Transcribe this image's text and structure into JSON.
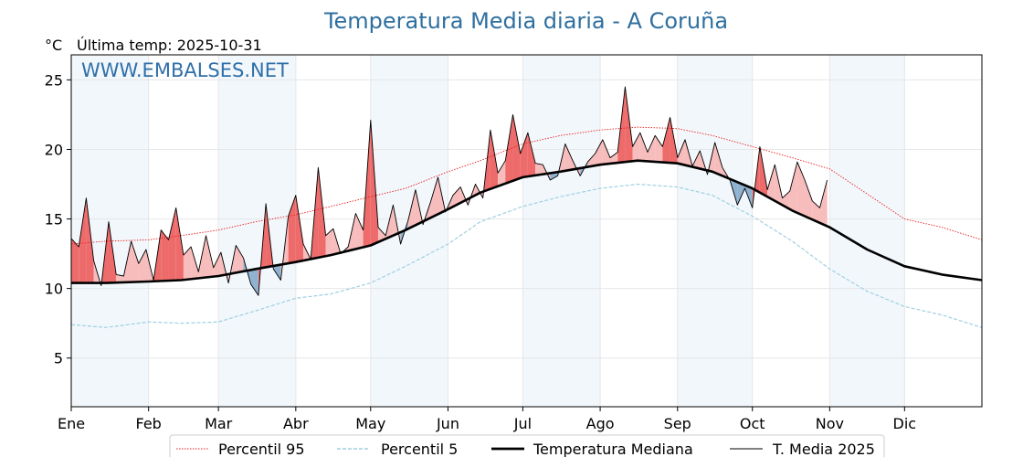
{
  "chart_data": {
    "type": "line",
    "title": "Temperatura Media diaria - A Coruña",
    "unit_label": "°C",
    "last_temp_label": "Última temp: 2025-10-31",
    "watermark": "WWW.EMBALSES.NET",
    "ylim": [
      1.5,
      26.8
    ],
    "xlim": [
      1,
      366
    ],
    "yticks": [
      5,
      10,
      15,
      20,
      25
    ],
    "months": [
      {
        "label": "Ene",
        "day": 1
      },
      {
        "label": "Feb",
        "day": 32
      },
      {
        "label": "Mar",
        "day": 60
      },
      {
        "label": "Abr",
        "day": 91
      },
      {
        "label": "May",
        "day": 121
      },
      {
        "label": "Jun",
        "day": 152
      },
      {
        "label": "Jul",
        "day": 182
      },
      {
        "label": "Ago",
        "day": 213
      },
      {
        "label": "Sep",
        "day": 244
      },
      {
        "label": "Oct",
        "day": 274
      },
      {
        "label": "Nov",
        "day": 305
      },
      {
        "label": "Dic",
        "day": 335
      }
    ],
    "grid": true,
    "legend_position": "bottom",
    "series": [
      {
        "name": "Percentil 95",
        "color": "#e8201f",
        "style": "dotted",
        "days": [
          1,
          15,
          32,
          45,
          60,
          75,
          91,
          105,
          121,
          135,
          152,
          165,
          182,
          197,
          213,
          228,
          244,
          258,
          274,
          290,
          305,
          320,
          335,
          350,
          366
        ],
        "values": [
          13.2,
          13.4,
          13.5,
          13.8,
          14.2,
          14.8,
          15.3,
          15.9,
          16.6,
          17.2,
          18.4,
          19.2,
          20.4,
          21.0,
          21.4,
          21.6,
          21.5,
          21.0,
          20.2,
          19.4,
          18.6,
          16.8,
          15.0,
          14.4,
          13.5
        ]
      },
      {
        "name": "Percentil 5",
        "color": "#9fd0e0",
        "style": "dashed",
        "days": [
          1,
          15,
          32,
          45,
          60,
          75,
          91,
          105,
          121,
          135,
          152,
          165,
          182,
          197,
          213,
          228,
          244,
          258,
          274,
          290,
          305,
          320,
          335,
          350,
          366
        ],
        "values": [
          7.4,
          7.2,
          7.6,
          7.5,
          7.6,
          8.4,
          9.3,
          9.6,
          10.4,
          11.6,
          13.2,
          14.8,
          15.9,
          16.6,
          17.2,
          17.5,
          17.3,
          16.7,
          15.2,
          13.4,
          11.4,
          9.8,
          8.7,
          8.1,
          7.2
        ]
      },
      {
        "name": "Temperatura Mediana",
        "color": "#000000",
        "style": "solid-thick",
        "days": [
          1,
          15,
          32,
          45,
          60,
          75,
          91,
          105,
          121,
          135,
          152,
          165,
          182,
          197,
          213,
          228,
          244,
          258,
          274,
          290,
          305,
          320,
          335,
          350,
          366
        ],
        "values": [
          10.4,
          10.4,
          10.5,
          10.6,
          10.9,
          11.4,
          11.9,
          12.4,
          13.1,
          14.2,
          15.7,
          16.9,
          18.0,
          18.4,
          18.9,
          19.2,
          19.0,
          18.4,
          17.2,
          15.6,
          14.4,
          12.8,
          11.6,
          11.0,
          10.6
        ]
      },
      {
        "name": "T. Media 2025",
        "color": "#000000",
        "style": "solid-thin",
        "days": [
          1,
          4,
          7,
          10,
          13,
          16,
          19,
          22,
          25,
          28,
          31,
          34,
          37,
          40,
          43,
          46,
          49,
          52,
          55,
          58,
          61,
          64,
          67,
          70,
          73,
          76,
          79,
          82,
          85,
          88,
          91,
          94,
          97,
          100,
          103,
          106,
          109,
          112,
          115,
          118,
          121,
          124,
          127,
          130,
          133,
          136,
          139,
          142,
          145,
          148,
          151,
          154,
          157,
          160,
          163,
          166,
          169,
          172,
          175,
          178,
          181,
          184,
          187,
          190,
          193,
          196,
          199,
          202,
          205,
          208,
          211,
          214,
          217,
          220,
          223,
          226,
          229,
          232,
          235,
          238,
          241,
          244,
          247,
          250,
          253,
          256,
          259,
          262,
          265,
          268,
          271,
          274,
          277,
          280,
          283,
          286,
          289,
          292,
          295,
          298,
          301,
          304
        ],
        "values": [
          13.6,
          13.0,
          16.5,
          12.0,
          10.2,
          14.8,
          11.0,
          10.9,
          13.4,
          11.8,
          12.8,
          10.6,
          14.2,
          13.5,
          15.8,
          12.4,
          13.0,
          11.2,
          13.8,
          11.5,
          12.6,
          10.4,
          13.1,
          12.2,
          10.3,
          9.5,
          16.1,
          11.4,
          10.6,
          15.2,
          16.7,
          13.2,
          12.1,
          18.7,
          13.8,
          14.3,
          12.5,
          13.0,
          15.4,
          14.2,
          22.1,
          14.4,
          13.8,
          16.0,
          13.2,
          14.9,
          17.1,
          14.6,
          16.2,
          18.0,
          15.5,
          16.7,
          17.3,
          16.0,
          17.5,
          16.5,
          21.4,
          18.3,
          19.2,
          22.5,
          19.7,
          21.2,
          19.0,
          18.9,
          17.8,
          18.1,
          20.4,
          19.2,
          18.1,
          19.1,
          19.7,
          20.7,
          19.4,
          19.8,
          24.5,
          20.2,
          21.2,
          19.8,
          21.0,
          20.2,
          22.3,
          19.4,
          20.7,
          18.8,
          19.9,
          18.2,
          20.5,
          18.7,
          17.8,
          16.0,
          17.2,
          15.8,
          20.2,
          17.1,
          18.9,
          16.5,
          17.0,
          19.1,
          17.8,
          16.3,
          15.8,
          17.8
        ]
      }
    ]
  }
}
